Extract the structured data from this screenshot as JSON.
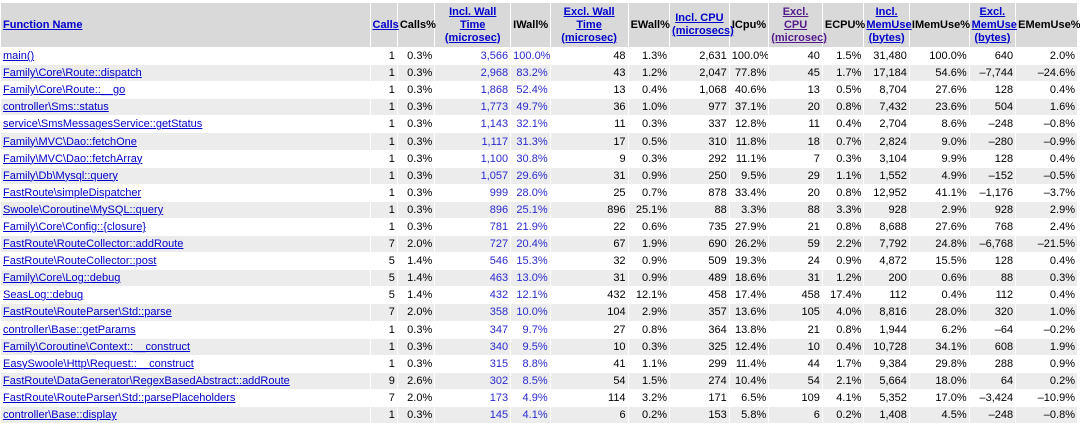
{
  "table": {
    "headers": [
      "Function Name",
      "Calls",
      "Calls%",
      "Incl. Wall Time (microsec)",
      "IWall%",
      "Excl. Wall Time (microsec)",
      "EWall%",
      "Incl. CPU (microsecs)",
      "ICpu%",
      "Excl. CPU (microsec)",
      "ECPU%",
      "Incl. MemUse (bytes)",
      "IMemUse%",
      "Excl. MemUse (bytes)",
      "EMemUse%"
    ],
    "rows": [
      [
        "main()",
        "1",
        "0.3%",
        "3,566",
        "100.0%",
        "48",
        "1.3%",
        "2,631",
        "100.0%",
        "40",
        "1.5%",
        "31,480",
        "100.0%",
        "640",
        "2.0%"
      ],
      [
        "Family\\Core\\Route::dispatch",
        "1",
        "0.3%",
        "2,968",
        "83.2%",
        "43",
        "1.2%",
        "2,047",
        "77.8%",
        "45",
        "1.7%",
        "17,184",
        "54.6%",
        "–7,744",
        "–24.6%"
      ],
      [
        "Family\\Core\\Route::__go",
        "1",
        "0.3%",
        "1,868",
        "52.4%",
        "13",
        "0.4%",
        "1,068",
        "40.6%",
        "13",
        "0.5%",
        "8,704",
        "27.6%",
        "128",
        "0.4%"
      ],
      [
        "controller\\Sms::status",
        "1",
        "0.3%",
        "1,773",
        "49.7%",
        "36",
        "1.0%",
        "977",
        "37.1%",
        "20",
        "0.8%",
        "7,432",
        "23.6%",
        "504",
        "1.6%"
      ],
      [
        "service\\SmsMessagesService::getStatus",
        "1",
        "0.3%",
        "1,143",
        "32.1%",
        "11",
        "0.3%",
        "337",
        "12.8%",
        "11",
        "0.4%",
        "2,704",
        "8.6%",
        "–248",
        "–0.8%"
      ],
      [
        "Family\\MVC\\Dao::fetchOne",
        "1",
        "0.3%",
        "1,117",
        "31.3%",
        "17",
        "0.5%",
        "310",
        "11.8%",
        "18",
        "0.7%",
        "2,824",
        "9.0%",
        "–280",
        "–0.9%"
      ],
      [
        "Family\\MVC\\Dao::fetchArray",
        "1",
        "0.3%",
        "1,100",
        "30.8%",
        "9",
        "0.3%",
        "292",
        "11.1%",
        "7",
        "0.3%",
        "3,104",
        "9.9%",
        "128",
        "0.4%"
      ],
      [
        "Family\\Db\\Mysql::query",
        "1",
        "0.3%",
        "1,057",
        "29.6%",
        "31",
        "0.9%",
        "250",
        "9.5%",
        "29",
        "1.1%",
        "1,552",
        "4.9%",
        "–152",
        "–0.5%"
      ],
      [
        "FastRoute\\simpleDispatcher",
        "1",
        "0.3%",
        "999",
        "28.0%",
        "25",
        "0.7%",
        "878",
        "33.4%",
        "20",
        "0.8%",
        "12,952",
        "41.1%",
        "–1,176",
        "–3.7%"
      ],
      [
        "Swoole\\Coroutine\\MySQL::query",
        "1",
        "0.3%",
        "896",
        "25.1%",
        "896",
        "25.1%",
        "88",
        "3.3%",
        "88",
        "3.3%",
        "928",
        "2.9%",
        "928",
        "2.9%"
      ],
      [
        "Family\\Core\\Config::{closure}",
        "1",
        "0.3%",
        "781",
        "21.9%",
        "22",
        "0.6%",
        "735",
        "27.9%",
        "21",
        "0.8%",
        "8,688",
        "27.6%",
        "768",
        "2.4%"
      ],
      [
        "FastRoute\\RouteCollector::addRoute",
        "7",
        "2.0%",
        "727",
        "20.4%",
        "67",
        "1.9%",
        "690",
        "26.2%",
        "59",
        "2.2%",
        "7,792",
        "24.8%",
        "–6,768",
        "–21.5%"
      ],
      [
        "FastRoute\\RouteCollector::post",
        "5",
        "1.4%",
        "546",
        "15.3%",
        "32",
        "0.9%",
        "509",
        "19.3%",
        "24",
        "0.9%",
        "4,872",
        "15.5%",
        "128",
        "0.4%"
      ],
      [
        "Family\\Core\\Log::debug",
        "5",
        "1.4%",
        "463",
        "13.0%",
        "31",
        "0.9%",
        "489",
        "18.6%",
        "31",
        "1.2%",
        "200",
        "0.6%",
        "88",
        "0.3%"
      ],
      [
        "SeasLog::debug",
        "5",
        "1.4%",
        "432",
        "12.1%",
        "432",
        "12.1%",
        "458",
        "17.4%",
        "458",
        "17.4%",
        "112",
        "0.4%",
        "112",
        "0.4%"
      ],
      [
        "FastRoute\\RouteParser\\Std::parse",
        "7",
        "2.0%",
        "358",
        "10.0%",
        "104",
        "2.9%",
        "357",
        "13.6%",
        "105",
        "4.0%",
        "8,816",
        "28.0%",
        "320",
        "1.0%"
      ],
      [
        "controller\\Base::getParams",
        "1",
        "0.3%",
        "347",
        "9.7%",
        "27",
        "0.8%",
        "364",
        "13.8%",
        "21",
        "0.8%",
        "1,944",
        "6.2%",
        "–64",
        "–0.2%"
      ],
      [
        "Family\\Coroutine\\Context::__construct",
        "1",
        "0.3%",
        "340",
        "9.5%",
        "10",
        "0.3%",
        "325",
        "12.4%",
        "10",
        "0.4%",
        "10,728",
        "34.1%",
        "608",
        "1.9%"
      ],
      [
        "EasySwoole\\Http\\Request::__construct",
        "1",
        "0.3%",
        "315",
        "8.8%",
        "41",
        "1.1%",
        "299",
        "11.4%",
        "44",
        "1.7%",
        "9,384",
        "29.8%",
        "288",
        "0.9%"
      ],
      [
        "FastRoute\\DataGenerator\\RegexBasedAbstract::addRoute",
        "9",
        "2.6%",
        "302",
        "8.5%",
        "54",
        "1.5%",
        "274",
        "10.4%",
        "54",
        "2.1%",
        "5,664",
        "18.0%",
        "64",
        "0.2%"
      ],
      [
        "FastRoute\\RouteParser\\Std::parsePlaceholders",
        "7",
        "2.0%",
        "173",
        "4.9%",
        "114",
        "3.2%",
        "171",
        "6.5%",
        "109",
        "4.1%",
        "5,352",
        "17.0%",
        "–3,424",
        "–10.9%"
      ],
      [
        "controller\\Base::display",
        "1",
        "0.3%",
        "145",
        "4.1%",
        "6",
        "0.2%",
        "153",
        "5.8%",
        "6",
        "0.2%",
        "1,408",
        "4.5%",
        "–248",
        "–0.8%"
      ]
    ]
  }
}
